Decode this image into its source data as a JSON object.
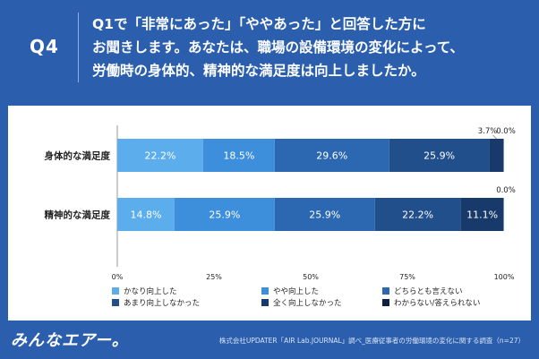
{
  "header": {
    "q_label": "Q4",
    "question_line1": "Q1で「非常にあった」「ややあった」と回答した方に",
    "question_line2": "お聞きします。あなたは、職場の設備環境の変化によって、",
    "question_line3": "労働時の身体的、精神的な満足度は向上しましたか。"
  },
  "footer": {
    "logo": "みんなエアー。",
    "source": "株式会社UPDATER「AIR Lab.JOURNAL」調べ_医療従事者の労働環境の変化に関する調査（n=27）"
  },
  "colors": {
    "header_bg": "#2b5fae",
    "card_bg": "#ffffff",
    "text_dark": "#1f1f1f"
  },
  "chart_data": {
    "type": "bar",
    "orientation": "horizontal",
    "stacked": true,
    "categories": [
      "身体的な満足度",
      "精神的な満足度"
    ],
    "series": [
      {
        "name": "かなり向上した",
        "values": [
          22.2,
          14.8
        ],
        "color": "#5badec"
      },
      {
        "name": "やや向上した",
        "values": [
          18.5,
          25.9
        ],
        "color": "#3d8fdc"
      },
      {
        "name": "どちらとも言えない",
        "values": [
          29.6,
          25.9
        ],
        "color": "#2c68b2"
      },
      {
        "name": "あまり向上しなかった",
        "values": [
          25.9,
          22.2
        ],
        "color": "#214f8c"
      },
      {
        "name": "全く向上しなかった",
        "values": [
          3.7,
          11.1
        ],
        "color": "#173a6a"
      },
      {
        "name": "わからない/答えられない",
        "values": [
          0.0,
          0.0
        ],
        "color": "#0e2140"
      }
    ],
    "xlim": [
      0,
      100
    ],
    "xticks": [
      "0%",
      "25%",
      "50%",
      "75%",
      "100%"
    ],
    "legend_position": "bottom",
    "grid": false
  }
}
